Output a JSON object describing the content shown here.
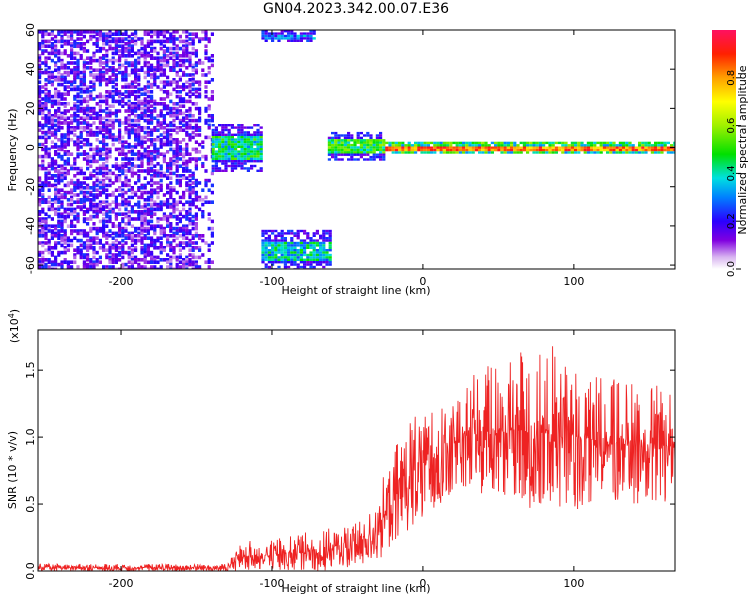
{
  "title": "GN04.2023.342.00.07.E36",
  "chart_data": [
    {
      "type": "heatmap",
      "title": "GN04.2023.342.00.07.E36",
      "xlabel": "Height of straight line (km)",
      "ylabel": "Frequency (Hz)",
      "xlim": [
        -255,
        167
      ],
      "ylim": [
        -62,
        60
      ],
      "x_ticks": [
        -200,
        -100,
        0,
        100
      ],
      "y_ticks": [
        -60,
        -40,
        -20,
        0,
        20,
        40,
        60
      ],
      "colorbar": {
        "label": "Normalized spectral amplitude",
        "range": [
          0,
          1
        ],
        "ticks": [
          "0.0",
          "0.2",
          "0.4",
          "0.6",
          "0.8"
        ]
      },
      "regions": [
        {
          "x": [
            -255,
            -140
          ],
          "y": [
            -62,
            60
          ],
          "kind": "broadband noise",
          "level": 0.12
        },
        {
          "x": [
            -140,
            -107
          ],
          "y": [
            -12,
            12
          ],
          "kind": "band",
          "level": 0.3
        },
        {
          "x": [
            -107,
            -72
          ],
          "y": [
            55,
            60
          ],
          "kind": "band",
          "level": 0.15
        },
        {
          "x": [
            -107,
            -62
          ],
          "y": [
            -62,
            -42
          ],
          "kind": "band",
          "level": 0.25
        },
        {
          "x": [
            -63,
            -25
          ],
          "y": [
            -6,
            8
          ],
          "kind": "band",
          "level": 0.35
        },
        {
          "x": [
            -25,
            167
          ],
          "y": [
            -3,
            3
          ],
          "kind": "line",
          "center": 0,
          "level": 0.9
        }
      ]
    },
    {
      "type": "line",
      "xlabel": "Height of straight line (km)",
      "ylabel": "SNR (10 * v/v)",
      "y_multiplier": "(x10",
      "y_multiplier_exp": "4",
      "y_multiplier_close": ")",
      "xlim": [
        -255,
        167
      ],
      "ylim": [
        0,
        1.8
      ],
      "x_ticks": [
        -200,
        -100,
        0,
        100
      ],
      "y_ticks": [
        "0.0",
        "0.5",
        "1.0",
        "1.5"
      ],
      "series": [
        {
          "color": "#ee2222",
          "envelope": [
            {
              "x": -255,
              "lo": 0.0,
              "hi": 0.05
            },
            {
              "x": -130,
              "lo": 0.0,
              "hi": 0.05
            },
            {
              "x": -120,
              "lo": 0.0,
              "hi": 0.2
            },
            {
              "x": -60,
              "lo": 0.0,
              "hi": 0.3
            },
            {
              "x": -40,
              "lo": 0.05,
              "hi": 0.35
            },
            {
              "x": -25,
              "lo": 0.1,
              "hi": 0.7
            },
            {
              "x": -10,
              "lo": 0.3,
              "hi": 1.1
            },
            {
              "x": 10,
              "lo": 0.5,
              "hi": 1.2
            },
            {
              "x": 30,
              "lo": 0.6,
              "hi": 1.4
            },
            {
              "x": 60,
              "lo": 0.5,
              "hi": 1.6
            },
            {
              "x": 90,
              "lo": 0.4,
              "hi": 1.6
            },
            {
              "x": 120,
              "lo": 0.5,
              "hi": 1.4
            },
            {
              "x": 167,
              "lo": 0.5,
              "hi": 1.3
            }
          ]
        }
      ]
    }
  ]
}
